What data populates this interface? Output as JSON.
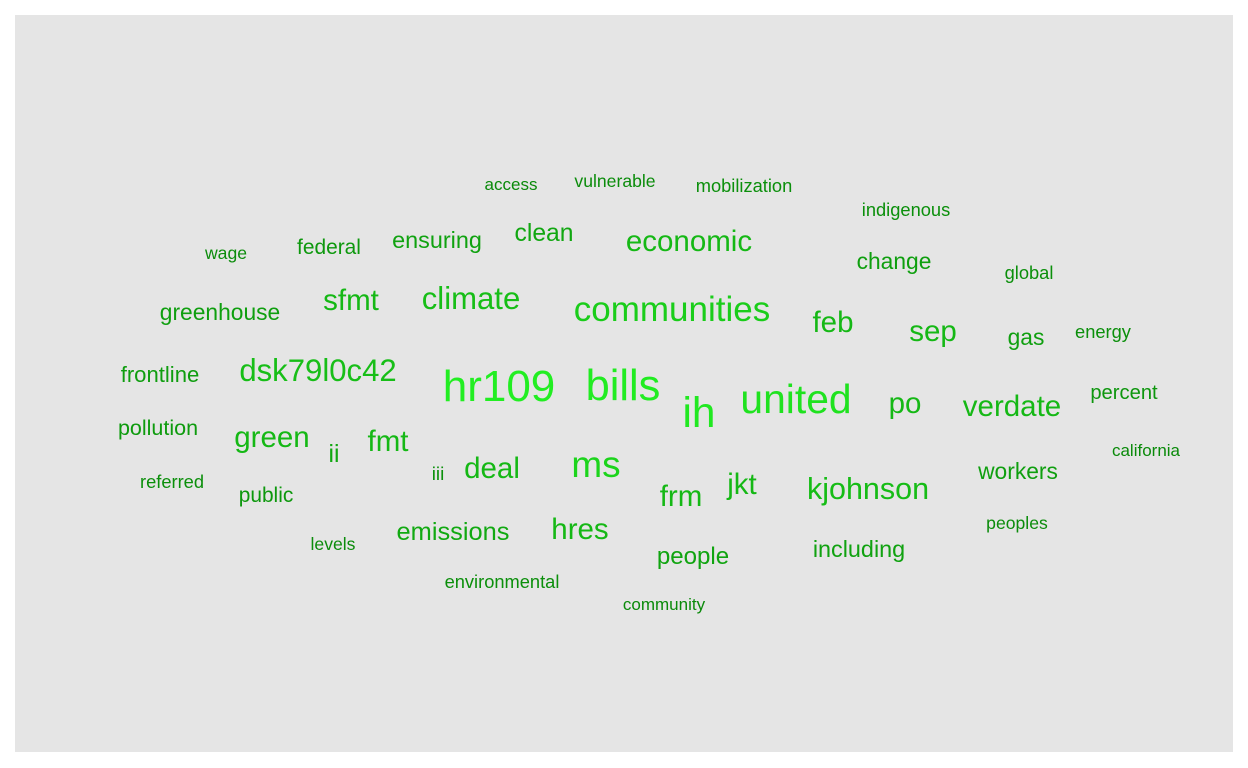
{
  "chart_data": {
    "type": "wordcloud",
    "title": "",
    "panel_color": "#e5e5e5",
    "color_low": "#0a8a0a",
    "color_high": "#22ee22",
    "words": [
      {
        "text": "hr109",
        "weight": 100
      },
      {
        "text": "bills",
        "weight": 98
      },
      {
        "text": "ih",
        "weight": 95
      },
      {
        "text": "united",
        "weight": 90
      },
      {
        "text": "ms",
        "weight": 78
      },
      {
        "text": "communities",
        "weight": 72
      },
      {
        "text": "dsk79l0c42",
        "weight": 60
      },
      {
        "text": "climate",
        "weight": 60
      },
      {
        "text": "kjohnson",
        "weight": 58
      },
      {
        "text": "deal",
        "weight": 55
      },
      {
        "text": "economic",
        "weight": 55
      },
      {
        "text": "verdate",
        "weight": 55
      },
      {
        "text": "green",
        "weight": 55
      },
      {
        "text": "sep",
        "weight": 55
      },
      {
        "text": "feb",
        "weight": 55
      },
      {
        "text": "po",
        "weight": 55
      },
      {
        "text": "jkt",
        "weight": 55
      },
      {
        "text": "frm",
        "weight": 55
      },
      {
        "text": "hres",
        "weight": 55
      },
      {
        "text": "sfmt",
        "weight": 55
      },
      {
        "text": "fmt",
        "weight": 55
      },
      {
        "text": "emissions",
        "weight": 42
      },
      {
        "text": "clean",
        "weight": 40
      },
      {
        "text": "ii",
        "weight": 40
      },
      {
        "text": "people",
        "weight": 38
      },
      {
        "text": "ensuring",
        "weight": 36
      },
      {
        "text": "including",
        "weight": 36
      },
      {
        "text": "workers",
        "weight": 34
      },
      {
        "text": "greenhouse",
        "weight": 34
      },
      {
        "text": "change",
        "weight": 34
      },
      {
        "text": "gas",
        "weight": 34
      },
      {
        "text": "frontline",
        "weight": 32
      },
      {
        "text": "pollution",
        "weight": 30
      },
      {
        "text": "public",
        "weight": 28
      },
      {
        "text": "federal",
        "weight": 28
      },
      {
        "text": "percent",
        "weight": 26
      },
      {
        "text": "iii",
        "weight": 22
      },
      {
        "text": "referred",
        "weight": 20
      },
      {
        "text": "mobilization",
        "weight": 20
      },
      {
        "text": "energy",
        "weight": 20
      },
      {
        "text": "environmental",
        "weight": 20
      },
      {
        "text": "indigenous",
        "weight": 20
      },
      {
        "text": "global",
        "weight": 20
      },
      {
        "text": "vulnerable",
        "weight": 18
      },
      {
        "text": "levels",
        "weight": 18
      },
      {
        "text": "peoples",
        "weight": 18
      },
      {
        "text": "wage",
        "weight": 18
      },
      {
        "text": "access",
        "weight": 16
      },
      {
        "text": "community",
        "weight": 16
      },
      {
        "text": "california",
        "weight": 16
      }
    ]
  }
}
